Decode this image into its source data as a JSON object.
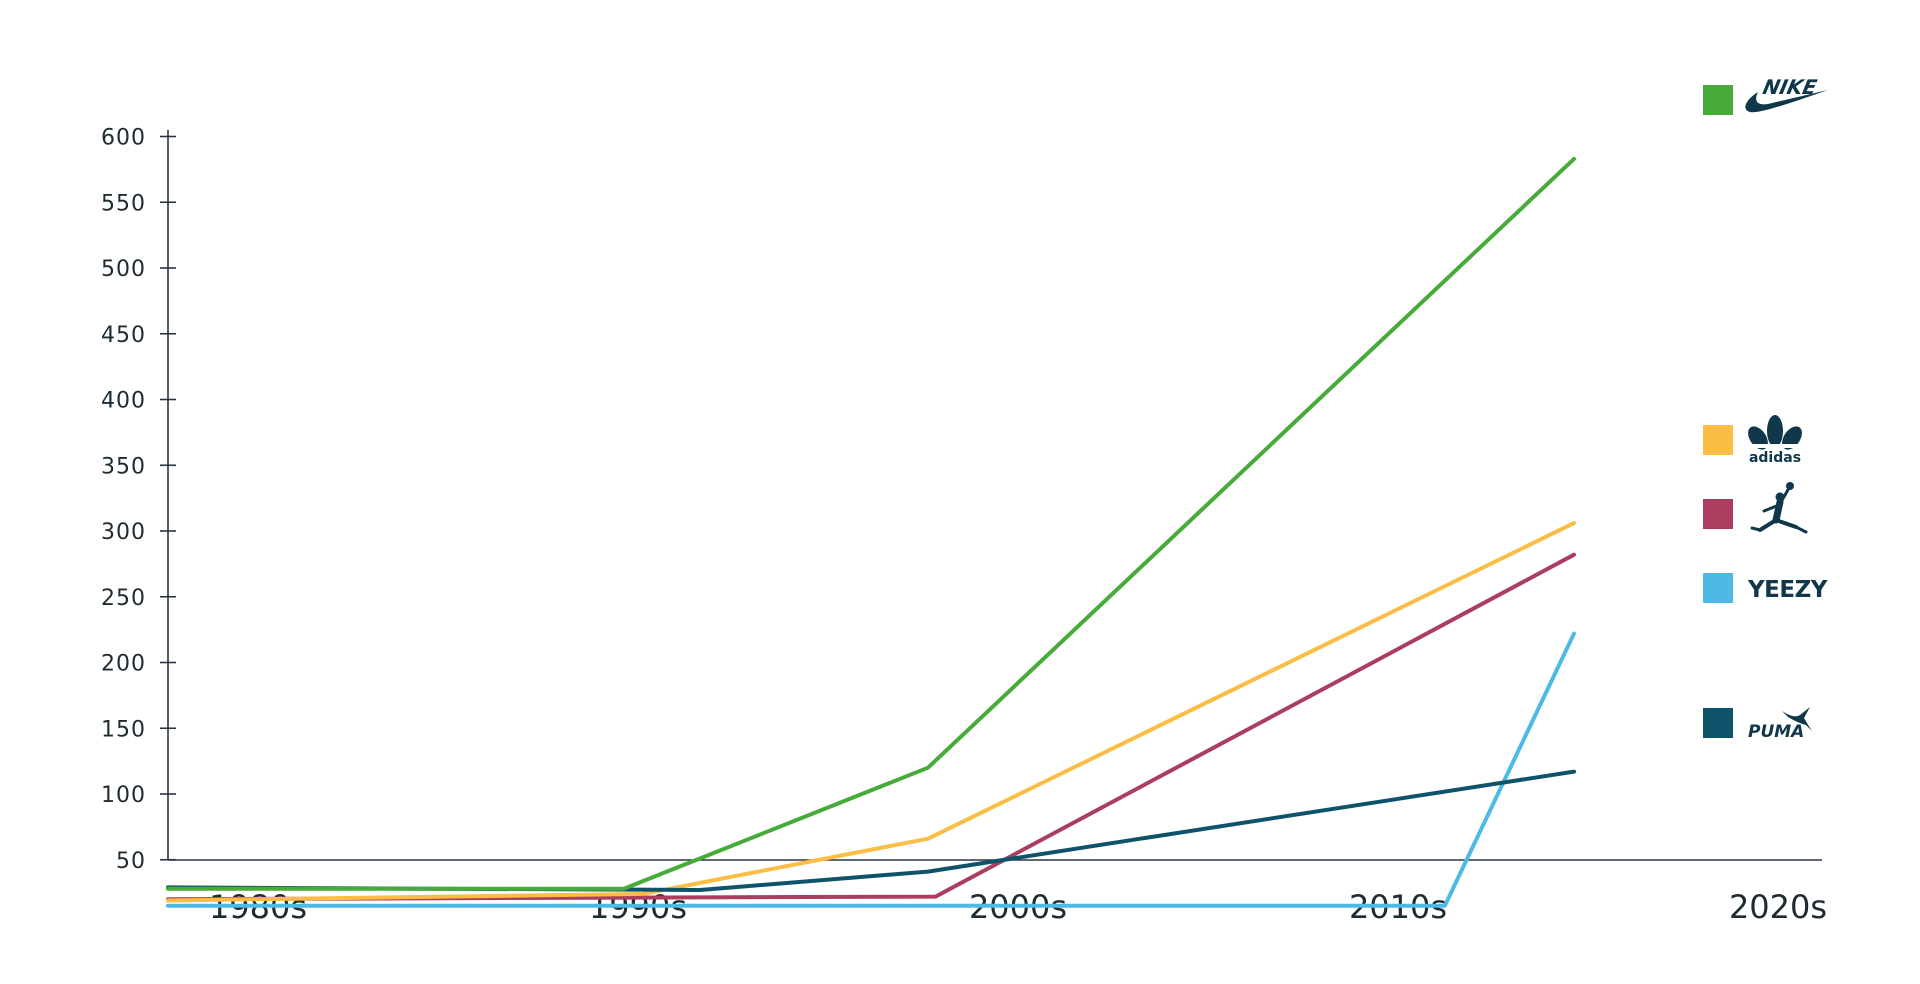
{
  "chart_data": {
    "type": "line",
    "x": [
      "1980s",
      "1990s",
      "2000s",
      "2010s",
      "2020s"
    ],
    "yticks": [
      50,
      100,
      150,
      200,
      250,
      300,
      350,
      400,
      450,
      500,
      550,
      600
    ],
    "ylim": [
      15,
      605
    ],
    "grid": false,
    "legend_position": "right",
    "series": [
      {
        "brand": "nike",
        "color": "#46ab39",
        "logo_text": "NIKE",
        "points": [
          {
            "x": 0,
            "y": 28
          },
          {
            "x": 1.2,
            "y": 28
          },
          {
            "x": 2.0,
            "y": 120
          },
          {
            "x": 3.7,
            "y": 583
          }
        ]
      },
      {
        "brand": "adidas",
        "color": "#fbbd44",
        "logo_text": "adidas",
        "points": [
          {
            "x": 0,
            "y": 19
          },
          {
            "x": 1.25,
            "y": 24
          },
          {
            "x": 2.0,
            "y": 66
          },
          {
            "x": 3.7,
            "y": 306
          }
        ]
      },
      {
        "brand": "jordan",
        "color": "#ac3d5e",
        "logo_text": "",
        "points": [
          {
            "x": 0,
            "y": 20
          },
          {
            "x": 1.0,
            "y": 21
          },
          {
            "x": 2.02,
            "y": 22
          },
          {
            "x": 3.7,
            "y": 282
          }
        ]
      },
      {
        "brand": "yeezy",
        "color": "#4fb9e6",
        "logo_text": "YEEZY",
        "points": [
          {
            "x": 0,
            "y": 15
          },
          {
            "x": 3.36,
            "y": 15
          },
          {
            "x": 3.7,
            "y": 222
          }
        ]
      },
      {
        "brand": "puma",
        "color": "#0f536b",
        "logo_text": "PUMA",
        "points": [
          {
            "x": 0,
            "y": 29
          },
          {
            "x": 1.4,
            "y": 27
          },
          {
            "x": 2.0,
            "y": 41
          },
          {
            "x": 3.7,
            "y": 117
          }
        ]
      }
    ]
  }
}
